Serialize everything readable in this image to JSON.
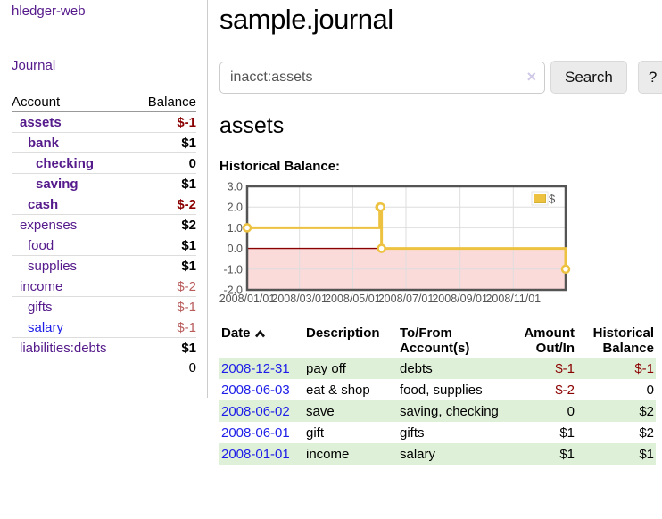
{
  "sidebar": {
    "brand": "hledger-web",
    "nav": {
      "journal_label": "Journal"
    },
    "accounts_table": {
      "headers": [
        "Account",
        "Balance"
      ],
      "rows": [
        {
          "account": "assets",
          "depth": 1,
          "bold": true,
          "link_color": "purple",
          "balance": "$-1",
          "balance_class": "neg-strong",
          "balance_bold": true
        },
        {
          "account": "bank",
          "depth": 2,
          "bold": true,
          "link_color": "purple",
          "balance": "$1",
          "balance_class": "black",
          "balance_bold": true
        },
        {
          "account": "checking",
          "depth": 3,
          "bold": true,
          "link_color": "purple",
          "balance": "0",
          "balance_class": "black",
          "balance_bold": true
        },
        {
          "account": "saving",
          "depth": 3,
          "bold": true,
          "link_color": "purple",
          "balance": "$1",
          "balance_class": "black",
          "balance_bold": true
        },
        {
          "account": "cash",
          "depth": 2,
          "bold": true,
          "link_color": "purple",
          "balance": "$-2",
          "balance_class": "neg-strong",
          "balance_bold": true
        },
        {
          "account": "expenses",
          "depth": 1,
          "bold": false,
          "link_color": "purple",
          "balance": "$2",
          "balance_class": "black",
          "balance_bold": true
        },
        {
          "account": "food",
          "depth": 2,
          "bold": false,
          "link_color": "purple",
          "balance": "$1",
          "balance_class": "black",
          "balance_bold": true
        },
        {
          "account": "supplies",
          "depth": 2,
          "bold": false,
          "link_color": "purple",
          "balance": "$1",
          "balance_class": "black",
          "balance_bold": true
        },
        {
          "account": "income",
          "depth": 1,
          "bold": false,
          "link_color": "purple",
          "balance": "$-2",
          "balance_class": "neg-soft",
          "balance_bold": false
        },
        {
          "account": "gifts",
          "depth": 2,
          "bold": false,
          "link_color": "purple",
          "balance": "$-1",
          "balance_class": "neg-soft",
          "balance_bold": false
        },
        {
          "account": "salary",
          "depth": 2,
          "bold": false,
          "link_color": "blue",
          "balance": "$-1",
          "balance_class": "neg-soft",
          "balance_bold": false
        },
        {
          "account": "liabilities:debts",
          "depth": 1,
          "bold": false,
          "link_color": "purple",
          "balance": "$1",
          "balance_class": "black",
          "balance_bold": true
        }
      ],
      "total": "0"
    }
  },
  "main": {
    "title": "sample.journal",
    "search": {
      "value": "inacct:assets",
      "clear_icon": "×",
      "button_label": "Search",
      "help_label": "?"
    },
    "account_heading": "assets",
    "chart_label": "Historical Balance:"
  },
  "chart_data": {
    "type": "line",
    "step": true,
    "title": "Historical Balance",
    "series": [
      {
        "name": "$",
        "color": "#edc240",
        "points": [
          {
            "date": "2008-01-01",
            "value": 1
          },
          {
            "date": "2008-06-01",
            "value": 2
          },
          {
            "date": "2008-06-02",
            "value": 2
          },
          {
            "date": "2008-06-03",
            "value": 0
          },
          {
            "date": "2008-12-31",
            "value": -1
          }
        ]
      }
    ],
    "xlim": [
      "2008-01-01",
      "2008-12-31"
    ],
    "ylim": [
      -2,
      3
    ],
    "x_ticks": [
      {
        "date": "2008-01-01",
        "label": "2008/01/01"
      },
      {
        "date": "2008-03-01",
        "label": "2008/03/01"
      },
      {
        "date": "2008-05-01",
        "label": "2008/05/01"
      },
      {
        "date": "2008-07-01",
        "label": "2008/07/01"
      },
      {
        "date": "2008-09-01",
        "label": "2008/09/01"
      },
      {
        "date": "2008-11-01",
        "label": "2008/11/01"
      }
    ],
    "y_ticks": [
      "3.0",
      "2.0",
      "1.0",
      "0.0",
      "-1.0",
      "-2.0"
    ],
    "legend": {
      "label": "$",
      "position": "top-right"
    },
    "grid": true,
    "colors": {
      "line": "#edc240",
      "negative_region": "#fbdada",
      "zero_line": "#8b0000",
      "gridline": "#dedede",
      "border": "#545454",
      "axis_text": "#545454"
    }
  },
  "register": {
    "headers": [
      "Date",
      "Description",
      "To/From Account(s)",
      "Amount Out/In",
      "Historical Balance"
    ],
    "rows": [
      {
        "date": "2008-12-31",
        "description": "pay off",
        "accounts": "debts",
        "amount": "$-1",
        "amount_negative": true,
        "balance": "$-1",
        "balance_negative": true,
        "shaded": true
      },
      {
        "date": "2008-06-03",
        "description": "eat & shop",
        "accounts": "food, supplies",
        "amount": "$-2",
        "amount_negative": true,
        "balance": "0",
        "balance_negative": false,
        "shaded": false
      },
      {
        "date": "2008-06-02",
        "description": "save",
        "accounts": "saving, checking",
        "amount": "0",
        "amount_negative": false,
        "balance": "$2",
        "balance_negative": false,
        "shaded": true
      },
      {
        "date": "2008-06-01",
        "description": "gift",
        "accounts": "gifts",
        "amount": "$1",
        "amount_negative": false,
        "balance": "$2",
        "balance_negative": false,
        "shaded": false
      },
      {
        "date": "2008-01-01",
        "description": "income",
        "accounts": "salary",
        "amount": "$1",
        "amount_negative": false,
        "balance": "$1",
        "balance_negative": false,
        "shaded": true
      }
    ]
  }
}
